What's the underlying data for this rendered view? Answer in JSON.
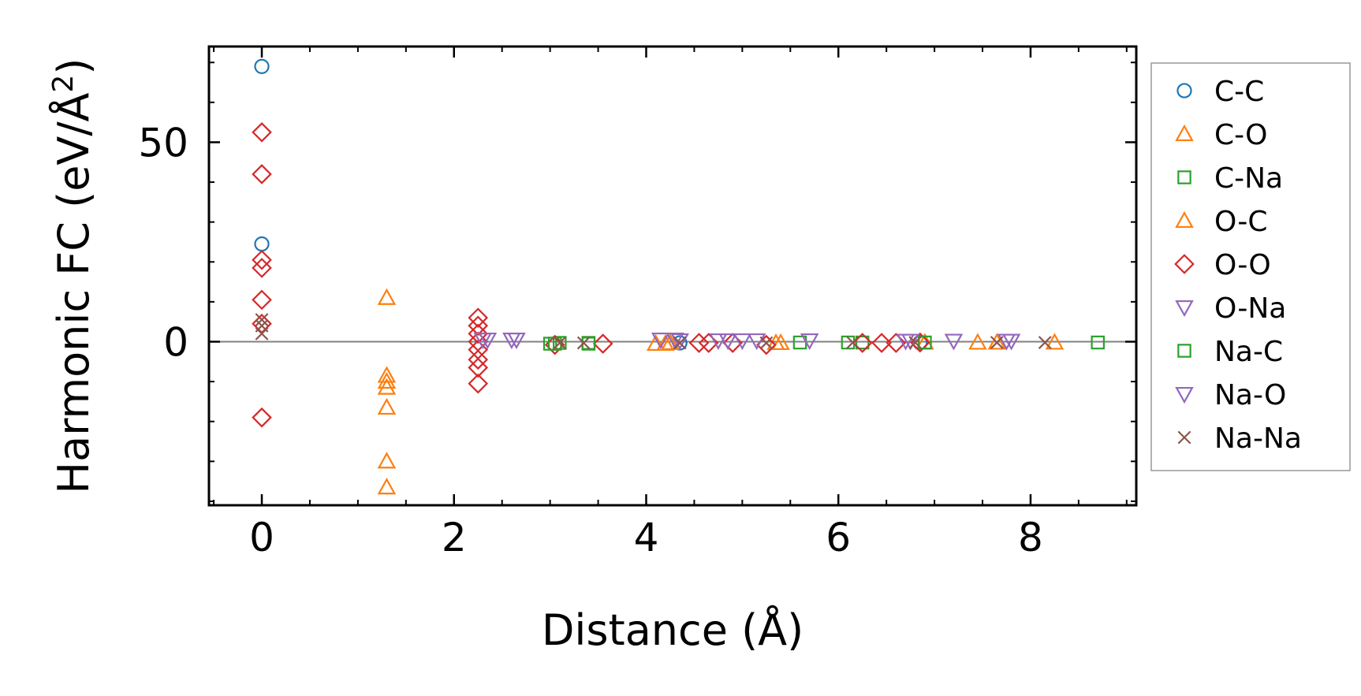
{
  "chart_data": {
    "type": "scatter",
    "xlabel": "Distance (Å)",
    "ylabel_main": "Harmonic FC (eV/Å",
    "ylabel_sup": "2",
    "ylabel_close": ")",
    "xlim": [
      -0.55,
      9.1
    ],
    "ylim": [
      -41,
      74
    ],
    "x_ticks": [
      0,
      2,
      4,
      6,
      8
    ],
    "x_tick_labels": [
      "0",
      "2",
      "4",
      "6",
      "8"
    ],
    "y_ticks": [
      0,
      50
    ],
    "y_tick_labels": [
      "0",
      "50"
    ],
    "zero_line": true,
    "legend_position": "outside-right",
    "series": [
      {
        "name": "C-C",
        "marker": "circle",
        "color": "#1f77b4",
        "points": [
          [
            0,
            69
          ],
          [
            0,
            24.5
          ],
          [
            4.35,
            -0.3
          ],
          [
            6.85,
            -0.2
          ]
        ]
      },
      {
        "name": "C-O",
        "marker": "triangle-up",
        "color": "#ff7f0e",
        "points": [
          [
            1.3,
            11
          ],
          [
            1.3,
            -8.5
          ],
          [
            1.3,
            -10
          ],
          [
            1.3,
            -11.5
          ],
          [
            1.3,
            -16.5
          ],
          [
            1.3,
            -30
          ],
          [
            1.3,
            -36.5
          ],
          [
            4.1,
            -0.5
          ],
          [
            4.25,
            -0.3
          ],
          [
            5.4,
            -0.3
          ],
          [
            6.9,
            -0.2
          ],
          [
            7.45,
            -0.2
          ]
        ]
      },
      {
        "name": "C-Na",
        "marker": "square",
        "color": "#2ca02c",
        "points": [
          [
            3.0,
            -0.5
          ],
          [
            3.1,
            -0.3
          ],
          [
            3.4,
            -0.3
          ],
          [
            5.6,
            -0.2
          ],
          [
            6.1,
            -0.2
          ],
          [
            6.25,
            -0.2
          ]
        ]
      },
      {
        "name": "O-C",
        "marker": "triangle-up",
        "color": "#ff7f0e",
        "points": [
          [
            4.2,
            -0.5
          ],
          [
            5.35,
            -0.3
          ],
          [
            7.65,
            -0.2
          ],
          [
            8.25,
            -0.2
          ]
        ]
      },
      {
        "name": "O-O",
        "marker": "diamond",
        "color": "#d62728",
        "points": [
          [
            0,
            52.5
          ],
          [
            0,
            42
          ],
          [
            0,
            20.5
          ],
          [
            0,
            18.5
          ],
          [
            0,
            10.5
          ],
          [
            0,
            4.5
          ],
          [
            0,
            -19
          ],
          [
            2.25,
            6
          ],
          [
            2.25,
            4
          ],
          [
            2.25,
            2
          ],
          [
            2.25,
            0
          ],
          [
            2.25,
            -2
          ],
          [
            2.25,
            -4.5
          ],
          [
            2.25,
            -6.5
          ],
          [
            2.25,
            -10.5
          ],
          [
            3.05,
            -0.8
          ],
          [
            3.55,
            -0.5
          ],
          [
            4.55,
            -0.3
          ],
          [
            4.65,
            -0.3
          ],
          [
            4.9,
            -0.3
          ],
          [
            5.25,
            -0.8
          ],
          [
            6.25,
            -0.3
          ],
          [
            6.45,
            -0.3
          ],
          [
            6.6,
            -0.3
          ],
          [
            6.85,
            -0.2
          ]
        ]
      },
      {
        "name": "O-Na",
        "marker": "triangle-down",
        "color": "#9467bd",
        "points": [
          [
            2.35,
            0.5
          ],
          [
            2.65,
            0.5
          ],
          [
            4.15,
            0.5
          ],
          [
            4.3,
            0.5
          ],
          [
            4.75,
            0.3
          ],
          [
            5.0,
            0.3
          ],
          [
            5.7,
            0.3
          ],
          [
            6.75,
            0.2
          ],
          [
            7.2,
            0.2
          ],
          [
            7.8,
            0.2
          ]
        ]
      },
      {
        "name": "Na-C",
        "marker": "square",
        "color": "#2ca02c",
        "points": [
          [
            3.05,
            -0.5
          ],
          [
            3.4,
            -0.5
          ],
          [
            6.9,
            -0.2
          ],
          [
            8.7,
            -0.2
          ]
        ]
      },
      {
        "name": "Na-O",
        "marker": "triangle-down",
        "color": "#9467bd",
        "points": [
          [
            2.3,
            0.5
          ],
          [
            2.6,
            0.5
          ],
          [
            4.35,
            0.3
          ],
          [
            4.85,
            0.3
          ],
          [
            5.15,
            0.3
          ],
          [
            6.7,
            0.2
          ],
          [
            7.75,
            0.2
          ]
        ]
      },
      {
        "name": "Na-Na",
        "marker": "x",
        "color": "#8c564b",
        "points": [
          [
            0,
            5.5
          ],
          [
            0,
            4
          ],
          [
            0,
            2
          ],
          [
            3.1,
            -0.3
          ],
          [
            3.35,
            -0.3
          ],
          [
            4.35,
            -0.3
          ],
          [
            5.25,
            -0.3
          ],
          [
            6.15,
            -0.2
          ],
          [
            6.8,
            -0.2
          ],
          [
            7.65,
            -0.2
          ],
          [
            8.15,
            -0.2
          ]
        ]
      }
    ]
  }
}
